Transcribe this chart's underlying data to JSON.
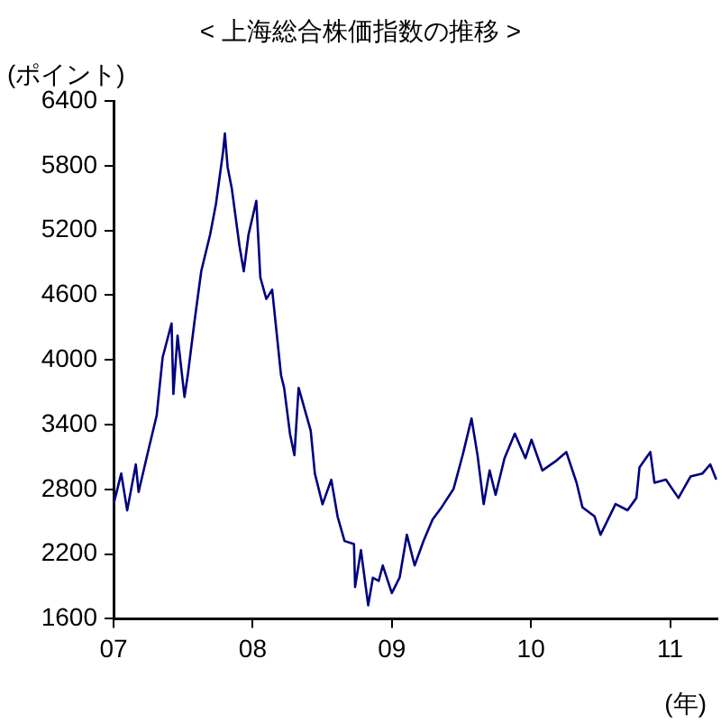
{
  "chart_data": {
    "type": "line",
    "title": "< 上海総合株価指数の推移 >",
    "ylabel": "(ポイント)",
    "xlabel": "(年)",
    "x": [
      2007.0,
      2007.055,
      2007.098,
      2007.16,
      2007.18,
      2007.247,
      2007.31,
      2007.353,
      2007.417,
      2007.43,
      2007.46,
      2007.51,
      2007.536,
      2007.58,
      2007.63,
      2007.694,
      2007.736,
      2007.787,
      2007.8,
      2007.82,
      2007.85,
      2007.906,
      2007.936,
      2007.97,
      2008.026,
      2008.055,
      2008.098,
      2008.14,
      2008.204,
      2008.226,
      2008.268,
      2008.3,
      2008.33,
      2008.417,
      2008.447,
      2008.502,
      2008.565,
      2008.61,
      2008.66,
      2008.728,
      2008.736,
      2008.778,
      2008.83,
      2008.864,
      2008.906,
      2008.935,
      2009.0,
      2009.056,
      2009.108,
      2009.164,
      2009.228,
      2009.293,
      2009.358,
      2009.444,
      2009.509,
      2009.573,
      2009.616,
      2009.66,
      2009.703,
      2009.746,
      2009.81,
      2009.884,
      2009.96,
      2010.004,
      2010.082,
      2010.177,
      2010.254,
      2010.328,
      2010.37,
      2010.457,
      2010.5,
      2010.543,
      2010.608,
      2010.694,
      2010.758,
      2010.78,
      2010.858,
      2010.888,
      2010.97,
      2011.06,
      2011.147,
      2011.233,
      2011.289,
      2011.332
    ],
    "series": [
      {
        "color": "#000080",
        "values": [
          2662,
          2946,
          2605,
          3031,
          2776,
          3145,
          3486,
          4025,
          4338,
          3685,
          4224,
          3656,
          3883,
          4338,
          4821,
          5161,
          5445,
          5928,
          6099,
          5786,
          5587,
          5048,
          4821,
          5161,
          5474,
          4764,
          4565,
          4650,
          3855,
          3741,
          3315,
          3117,
          3741,
          3344,
          2946,
          2662,
          2889,
          2549,
          2321,
          2293,
          1895,
          2236,
          1725,
          1981,
          1952,
          2094,
          1839,
          1982,
          2379,
          2094,
          2322,
          2520,
          2634,
          2805,
          3117,
          3457,
          3117,
          2663,
          2975,
          2748,
          3089,
          3316,
          3089,
          3260,
          2975,
          3060,
          3146,
          2861,
          2634,
          2549,
          2379,
          2492,
          2663,
          2606,
          2720,
          3004,
          3146,
          2861,
          2890,
          2720,
          2919,
          2947,
          3031,
          2890
        ]
      }
    ],
    "xlim": [
      2007,
      2011.34
    ],
    "xticks": [
      {
        "value": 2007,
        "label": "07"
      },
      {
        "value": 2008,
        "label": "08"
      },
      {
        "value": 2009,
        "label": "09"
      },
      {
        "value": 2010,
        "label": "10"
      },
      {
        "value": 2011,
        "label": "11"
      }
    ],
    "ylim": [
      1600,
      6400
    ],
    "yticks": [
      1600,
      2200,
      2800,
      3400,
      4000,
      4600,
      5200,
      5800,
      6400
    ],
    "grid": false,
    "legend": false,
    "marker": "none",
    "line_style": "solid"
  }
}
